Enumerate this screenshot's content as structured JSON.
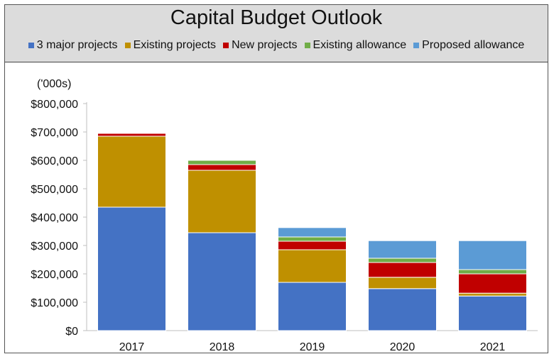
{
  "chart_data": {
    "type": "bar",
    "stacked": true,
    "title": "Capital Budget Outlook",
    "ylabel": "('000s)",
    "xlabel": "",
    "categories": [
      "2017",
      "2018",
      "2019",
      "2020",
      "2021"
    ],
    "ylim": [
      0,
      800000
    ],
    "yticks": [
      0,
      100000,
      200000,
      300000,
      400000,
      500000,
      600000,
      700000,
      800000
    ],
    "ytick_labels": [
      "$0",
      "$100,000",
      "$200,000",
      "$300,000",
      "$400,000",
      "$500,000",
      "$600,000",
      "$700,000",
      "$800,000"
    ],
    "legend_position": "top",
    "grid": false,
    "series": [
      {
        "name": "3 major projects",
        "color": "#4472c4",
        "values": [
          435000,
          345000,
          170000,
          148000,
          122000
        ]
      },
      {
        "name": "Existing projects",
        "color": "#bf9000",
        "values": [
          250000,
          220000,
          115000,
          40000,
          10000
        ]
      },
      {
        "name": "New projects",
        "color": "#c00000",
        "values": [
          10000,
          20000,
          30000,
          52000,
          68000
        ]
      },
      {
        "name": "Existing allowance",
        "color": "#70ad47",
        "values": [
          0,
          15000,
          15000,
          15000,
          15000
        ]
      },
      {
        "name": "Proposed allowance",
        "color": "#5b9bd5",
        "values": [
          0,
          0,
          33000,
          62000,
          102000
        ]
      }
    ]
  }
}
